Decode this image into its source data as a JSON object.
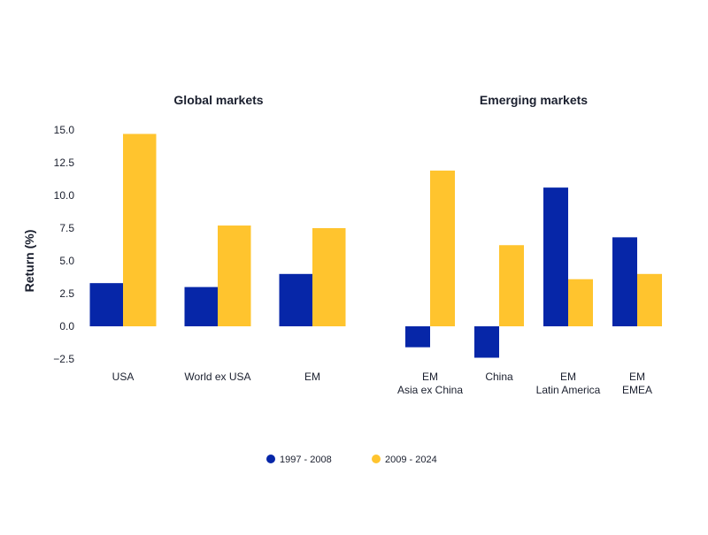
{
  "chart_data": [
    {
      "type": "bar",
      "title": "Global markets",
      "categories": [
        [
          "USA"
        ],
        [
          "World ex USA"
        ],
        [
          "EM"
        ]
      ],
      "series": [
        {
          "name": "1997 - 2008",
          "color": "#0626a8",
          "values": [
            3.3,
            3.0,
            4.0
          ]
        },
        {
          "name": "2009 - 2024",
          "color": "#ffc42e",
          "values": [
            14.7,
            7.7,
            7.5
          ]
        }
      ],
      "ylabel": "Return (%)",
      "ylim": [
        -2.5,
        15.0
      ],
      "yticks": [
        "−2.5",
        "0.0",
        "2.5",
        "5.0",
        "7.5",
        "10.0",
        "12.5",
        "15.0"
      ],
      "grid": false
    },
    {
      "type": "bar",
      "title": "Emerging markets",
      "categories": [
        [
          "EM",
          "Asia ex China"
        ],
        [
          "China"
        ],
        [
          "EM",
          "Latin America"
        ],
        [
          "EM",
          "EMEA"
        ]
      ],
      "series": [
        {
          "name": "1997 - 2008",
          "color": "#0626a8",
          "values": [
            -1.6,
            -2.4,
            10.6,
            6.8
          ]
        },
        {
          "name": "2009 - 2024",
          "color": "#ffc42e",
          "values": [
            11.9,
            6.2,
            3.6,
            4.0
          ]
        }
      ],
      "ylim": [
        -2.5,
        15.0
      ],
      "grid": false
    }
  ],
  "legend": {
    "placement": "bottom-center",
    "items": [
      "1997 - 2008",
      "2009 - 2024"
    ]
  }
}
